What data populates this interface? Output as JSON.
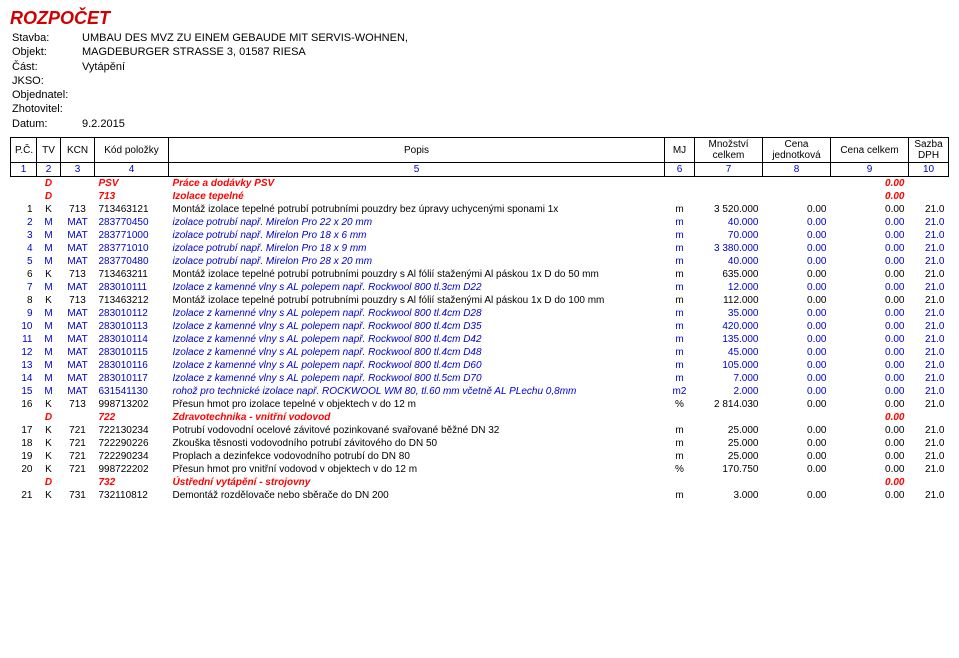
{
  "header": {
    "title": "ROZPOČET",
    "labels": {
      "stavba": "Stavba:",
      "objekt": "Objekt:",
      "cast": "Část:",
      "jkso": "JKSO:",
      "objednatel": "Objednatel:",
      "zhotovitel": "Zhotovitel:",
      "datum": "Datum:"
    },
    "stavba": "UMBAU DES MVZ ZU EINEM GEBAUDE MIT SERVIS-WOHNEN,",
    "objekt": "MAGDEBURGER STRASSE 3, 01587 RIESA",
    "cast": "Vytápění",
    "jkso": "",
    "objednatel": "",
    "zhotovitel": "",
    "datum": "9.2.2015"
  },
  "columns": {
    "pc": "P.Č.",
    "tv": "TV",
    "kcn": "KCN",
    "kod": "Kód položky",
    "popis": "Popis",
    "mj": "MJ",
    "mnozstvi": "Množství celkem",
    "cenajed": "Cena jednotková",
    "cenacelkem": "Cena celkem",
    "dph": "Sazba DPH"
  },
  "colnums": [
    "1",
    "2",
    "3",
    "4",
    "5",
    "6",
    "7",
    "8",
    "9",
    "10"
  ],
  "rows": [
    {
      "type": "section",
      "tv": "D",
      "kcn": "",
      "kod": "PSV",
      "popis": "Práce a dodávky PSV",
      "cc": "0.00"
    },
    {
      "type": "section",
      "tv": "D",
      "kcn": "",
      "kod": "713",
      "popis": "Izolace tepelné",
      "cc": "0.00"
    },
    {
      "type": "item",
      "style": "black",
      "pc": "1",
      "tv": "K",
      "kcn": "713",
      "kod": "713463121",
      "popis": "Montáž izolace tepelné potrubí potrubními pouzdry bez úpravy uchycenými sponami 1x",
      "mj": "m",
      "mn": "3 520.000",
      "cj": "0.00",
      "cc": "0.00",
      "dph": "21.0"
    },
    {
      "type": "item",
      "pc": "2",
      "tv": "M",
      "kcn": "MAT",
      "kod": "283770450",
      "popis": "izolace potrubí např. Mirelon Pro 22 x 20 mm",
      "mj": "m",
      "mn": "40.000",
      "cj": "0.00",
      "cc": "0.00",
      "dph": "21.0"
    },
    {
      "type": "item",
      "pc": "3",
      "tv": "M",
      "kcn": "MAT",
      "kod": "283771000",
      "popis": "izolace potrubí např. Mirelon Pro 18 x 6 mm",
      "mj": "m",
      "mn": "70.000",
      "cj": "0.00",
      "cc": "0.00",
      "dph": "21.0"
    },
    {
      "type": "item",
      "pc": "4",
      "tv": "M",
      "kcn": "MAT",
      "kod": "283771010",
      "popis": "izolace potrubí např. Mirelon Pro 18 x 9 mm",
      "mj": "m",
      "mn": "3 380.000",
      "cj": "0.00",
      "cc": "0.00",
      "dph": "21.0"
    },
    {
      "type": "item",
      "pc": "5",
      "tv": "M",
      "kcn": "MAT",
      "kod": "283770480",
      "popis": "izolace potrubí např. Mirelon Pro 28 x 20 mm",
      "mj": "m",
      "mn": "40.000",
      "cj": "0.00",
      "cc": "0.00",
      "dph": "21.0"
    },
    {
      "type": "item",
      "style": "black",
      "pc": "6",
      "tv": "K",
      "kcn": "713",
      "kod": "713463211",
      "popis": "Montáž izolace tepelné potrubí potrubními pouzdry s Al fólií staženými Al páskou 1x D do 50 mm",
      "mj": "m",
      "mn": "635.000",
      "cj": "0.00",
      "cc": "0.00",
      "dph": "21.0"
    },
    {
      "type": "item",
      "pc": "7",
      "tv": "M",
      "kcn": "MAT",
      "kod": "283010111",
      "popis": "Izolace z kamenné vlny s AL polepem např. Rockwool 800 tl.3cm D22",
      "mj": "m",
      "mn": "12.000",
      "cj": "0.00",
      "cc": "0.00",
      "dph": "21.0"
    },
    {
      "type": "item",
      "style": "black",
      "pc": "8",
      "tv": "K",
      "kcn": "713",
      "kod": "713463212",
      "popis": "Montáž izolace tepelné potrubí potrubními pouzdry s Al fólií staženými Al páskou 1x D do 100 mm",
      "mj": "m",
      "mn": "112.000",
      "cj": "0.00",
      "cc": "0.00",
      "dph": "21.0"
    },
    {
      "type": "item",
      "pc": "9",
      "tv": "M",
      "kcn": "MAT",
      "kod": "283010112",
      "popis": "Izolace z kamenné vlny s AL polepem např. Rockwool 800 tl.4cm D28",
      "mj": "m",
      "mn": "35.000",
      "cj": "0.00",
      "cc": "0.00",
      "dph": "21.0"
    },
    {
      "type": "item",
      "pc": "10",
      "tv": "M",
      "kcn": "MAT",
      "kod": "283010113",
      "popis": "Izolace z kamenné vlny s AL polepem např. Rockwool 800 tl.4cm D35",
      "mj": "m",
      "mn": "420.000",
      "cj": "0.00",
      "cc": "0.00",
      "dph": "21.0"
    },
    {
      "type": "item",
      "pc": "11",
      "tv": "M",
      "kcn": "MAT",
      "kod": "283010114",
      "popis": "Izolace z kamenné vlny s AL polepem např. Rockwool 800 tl.4cm D42",
      "mj": "m",
      "mn": "135.000",
      "cj": "0.00",
      "cc": "0.00",
      "dph": "21.0"
    },
    {
      "type": "item",
      "pc": "12",
      "tv": "M",
      "kcn": "MAT",
      "kod": "283010115",
      "popis": "Izolace z kamenné vlny s AL polepem např. Rockwool 800 tl.4cm D48",
      "mj": "m",
      "mn": "45.000",
      "cj": "0.00",
      "cc": "0.00",
      "dph": "21.0"
    },
    {
      "type": "item",
      "pc": "13",
      "tv": "M",
      "kcn": "MAT",
      "kod": "283010116",
      "popis": "Izolace z kamenné vlny s AL polepem např. Rockwool 800 tl.4cm D60",
      "mj": "m",
      "mn": "105.000",
      "cj": "0.00",
      "cc": "0.00",
      "dph": "21.0"
    },
    {
      "type": "item",
      "pc": "14",
      "tv": "M",
      "kcn": "MAT",
      "kod": "283010117",
      "popis": "Izolace z kamenné vlny s AL polepem např. Rockwool 800 tl.5cm D70",
      "mj": "m",
      "mn": "7.000",
      "cj": "0.00",
      "cc": "0.00",
      "dph": "21.0"
    },
    {
      "type": "item",
      "pc": "15",
      "tv": "M",
      "kcn": "MAT",
      "kod": "631541130",
      "popis": "rohož pro technické izolace např. ROCKWOOL WM 80, tl.60 mm včetně AL PLechu 0,8mm",
      "mj": "m2",
      "mn": "2.000",
      "cj": "0.00",
      "cc": "0.00",
      "dph": "21.0"
    },
    {
      "type": "item",
      "style": "black",
      "pc": "16",
      "tv": "K",
      "kcn": "713",
      "kod": "998713202",
      "popis": "Přesun hmot pro izolace tepelné v objektech v do 12 m",
      "mj": "%",
      "mn": "2 814.030",
      "cj": "0.00",
      "cc": "0.00",
      "dph": "21.0"
    },
    {
      "type": "section",
      "tv": "D",
      "kcn": "",
      "kod": "722",
      "popis": "Zdravotechnika - vnitřní vodovod",
      "cc": "0.00"
    },
    {
      "type": "item",
      "style": "black",
      "pc": "17",
      "tv": "K",
      "kcn": "721",
      "kod": "722130234",
      "popis": "Potrubí vodovodní ocelové závitové pozinkované svařované běžné DN 32",
      "mj": "m",
      "mn": "25.000",
      "cj": "0.00",
      "cc": "0.00",
      "dph": "21.0"
    },
    {
      "type": "item",
      "style": "black",
      "pc": "18",
      "tv": "K",
      "kcn": "721",
      "kod": "722290226",
      "popis": "Zkouška těsnosti vodovodního potrubí závitového do DN 50",
      "mj": "m",
      "mn": "25.000",
      "cj": "0.00",
      "cc": "0.00",
      "dph": "21.0"
    },
    {
      "type": "item",
      "style": "black",
      "pc": "19",
      "tv": "K",
      "kcn": "721",
      "kod": "722290234",
      "popis": "Proplach a dezinfekce vodovodního potrubí do DN 80",
      "mj": "m",
      "mn": "25.000",
      "cj": "0.00",
      "cc": "0.00",
      "dph": "21.0"
    },
    {
      "type": "item",
      "style": "black",
      "pc": "20",
      "tv": "K",
      "kcn": "721",
      "kod": "998722202",
      "popis": "Přesun hmot pro vnitřní vodovod v objektech v do 12 m",
      "mj": "%",
      "mn": "170.750",
      "cj": "0.00",
      "cc": "0.00",
      "dph": "21.0"
    },
    {
      "type": "section",
      "tv": "D",
      "kcn": "",
      "kod": "732",
      "popis": "Ústřední vytápění - strojovny",
      "cc": "0.00"
    },
    {
      "type": "item",
      "style": "black",
      "pc": "21",
      "tv": "K",
      "kcn": "731",
      "kod": "732110812",
      "popis": "Demontáž rozdělovače nebo sběrače do DN 200",
      "mj": "m",
      "mn": "3.000",
      "cj": "0.00",
      "cc": "0.00",
      "dph": "21.0"
    }
  ]
}
